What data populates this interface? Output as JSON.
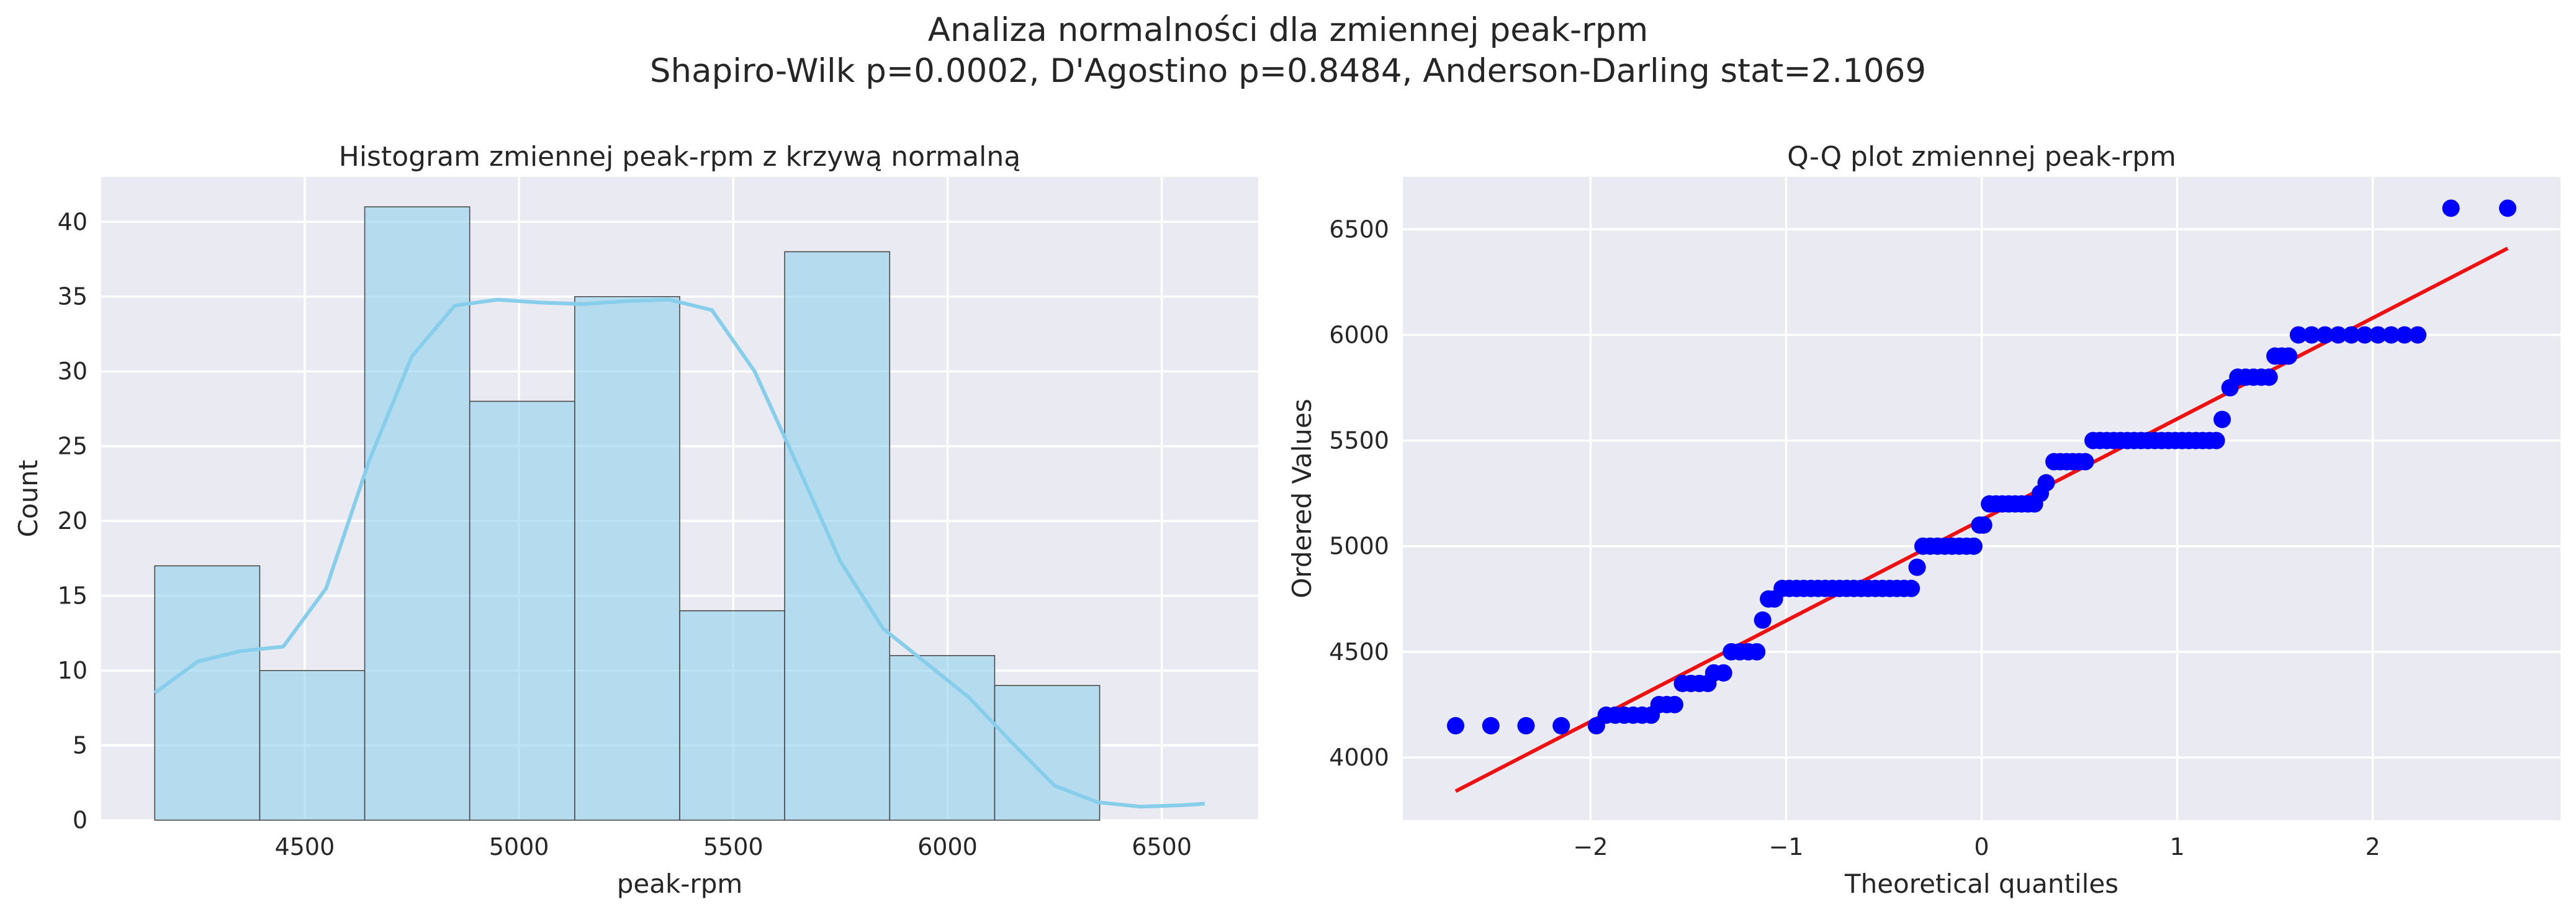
{
  "figure": {
    "suptitle_line1": "Analiza normalności dla zmiennej peak-rpm",
    "suptitle_line2": "Shapiro-Wilk p=0.0002, D'Agostino p=0.8484, Anderson-Darling stat=2.1069"
  },
  "colors": {
    "axes_background": "#eaeaf2",
    "grid": "#ffffff",
    "bar_fill": "#87ceeb",
    "bar_edge": "#4a4a4a",
    "kde_line": "#87ceeb",
    "qq_points": "#0000ff",
    "qq_line": "#ee1111"
  },
  "chart_data": [
    {
      "type": "bar",
      "subtype": "histogram_with_kde",
      "title": "Histogram zmiennej peak-rpm z krzywą normalną",
      "xlabel": "peak-rpm",
      "ylabel": "Count",
      "bin_edges": [
        4150,
        4395,
        4640,
        4885,
        5130,
        5375,
        5620,
        5865,
        6110,
        6355,
        6600
      ],
      "values": [
        17,
        10,
        41,
        28,
        35,
        14,
        38,
        11,
        9,
        0,
        2
      ],
      "kde": {
        "x": [
          4150,
          4250,
          4350,
          4450,
          4550,
          4650,
          4750,
          4850,
          4950,
          5050,
          5150,
          5250,
          5350,
          5450,
          5550,
          5650,
          5750,
          5850,
          5950,
          6050,
          6150,
          6250,
          6350,
          6450,
          6550,
          6600
        ],
        "y": [
          8.5,
          10.6,
          11.3,
          11.6,
          15.5,
          24,
          31,
          34.4,
          34.8,
          34.6,
          34.5,
          34.7,
          34.8,
          34.1,
          30,
          23.7,
          17.3,
          12.8,
          10.5,
          8.2,
          5.2,
          2.3,
          1.2,
          0.9,
          1.0,
          1.1
        ]
      },
      "xlim": [
        4025,
        6725
      ],
      "ylim": [
        0,
        43
      ],
      "xticks": [
        4500,
        5000,
        5500,
        6000,
        6500
      ],
      "yticks": [
        0,
        5,
        10,
        15,
        20,
        25,
        30,
        35,
        40
      ],
      "grid": true
    },
    {
      "type": "scatter",
      "subtype": "qq_plot",
      "title": "Q-Q plot zmiennej peak-rpm",
      "xlabel": "Theoretical quantiles",
      "ylabel": "Ordered Values",
      "clusters": [
        {
          "value": 4150,
          "x_from": -2.69,
          "x_to": -1.97,
          "count": 5
        },
        {
          "value": 4200,
          "x_from": -1.92,
          "x_to": -1.69,
          "count": 6
        },
        {
          "value": 4250,
          "x_from": -1.65,
          "x_to": -1.57,
          "count": 3
        },
        {
          "value": 4350,
          "x_from": -1.53,
          "x_to": -1.4,
          "count": 4
        },
        {
          "value": 4400,
          "x_from": -1.37,
          "x_to": -1.32,
          "count": 2
        },
        {
          "value": 4500,
          "x_from": -1.28,
          "x_to": -1.15,
          "count": 4
        },
        {
          "value": 4650,
          "x_from": -1.12,
          "x_to": -1.12,
          "count": 1
        },
        {
          "value": 4750,
          "x_from": -1.09,
          "x_to": -1.06,
          "count": 2
        },
        {
          "value": 4800,
          "x_from": -1.02,
          "x_to": -0.36,
          "count": 19
        },
        {
          "value": 4900,
          "x_from": -0.33,
          "x_to": -0.33,
          "count": 1
        },
        {
          "value": 5000,
          "x_from": -0.3,
          "x_to": -0.04,
          "count": 8
        },
        {
          "value": 5100,
          "x_from": -0.01,
          "x_to": 0.01,
          "count": 2
        },
        {
          "value": 5200,
          "x_from": 0.04,
          "x_to": 0.27,
          "count": 8
        },
        {
          "value": 5250,
          "x_from": 0.3,
          "x_to": 0.3,
          "count": 1
        },
        {
          "value": 5300,
          "x_from": 0.33,
          "x_to": 0.33,
          "count": 1
        },
        {
          "value": 5400,
          "x_from": 0.37,
          "x_to": 0.53,
          "count": 6
        },
        {
          "value": 5500,
          "x_from": 0.57,
          "x_to": 1.2,
          "count": 19
        },
        {
          "value": 5600,
          "x_from": 1.23,
          "x_to": 1.23,
          "count": 1
        },
        {
          "value": 5750,
          "x_from": 1.27,
          "x_to": 1.27,
          "count": 1
        },
        {
          "value": 5800,
          "x_from": 1.31,
          "x_to": 1.47,
          "count": 5
        },
        {
          "value": 5900,
          "x_from": 1.5,
          "x_to": 1.57,
          "count": 3
        },
        {
          "value": 6000,
          "x_from": 1.62,
          "x_to": 2.23,
          "count": 10
        },
        {
          "value": 6600,
          "x_from": 2.4,
          "x_to": 2.69,
          "count": 2
        }
      ],
      "fit_line": {
        "x": [
          -2.69,
          2.69
        ],
        "y": [
          3840,
          6410
        ]
      },
      "xlim": [
        -2.96,
        2.96
      ],
      "ylim": [
        3703,
        6748
      ],
      "xticks": [
        -2,
        -1,
        0,
        1,
        2
      ],
      "yticks": [
        4000,
        4500,
        5000,
        5500,
        6000,
        6500
      ],
      "grid": true
    }
  ]
}
